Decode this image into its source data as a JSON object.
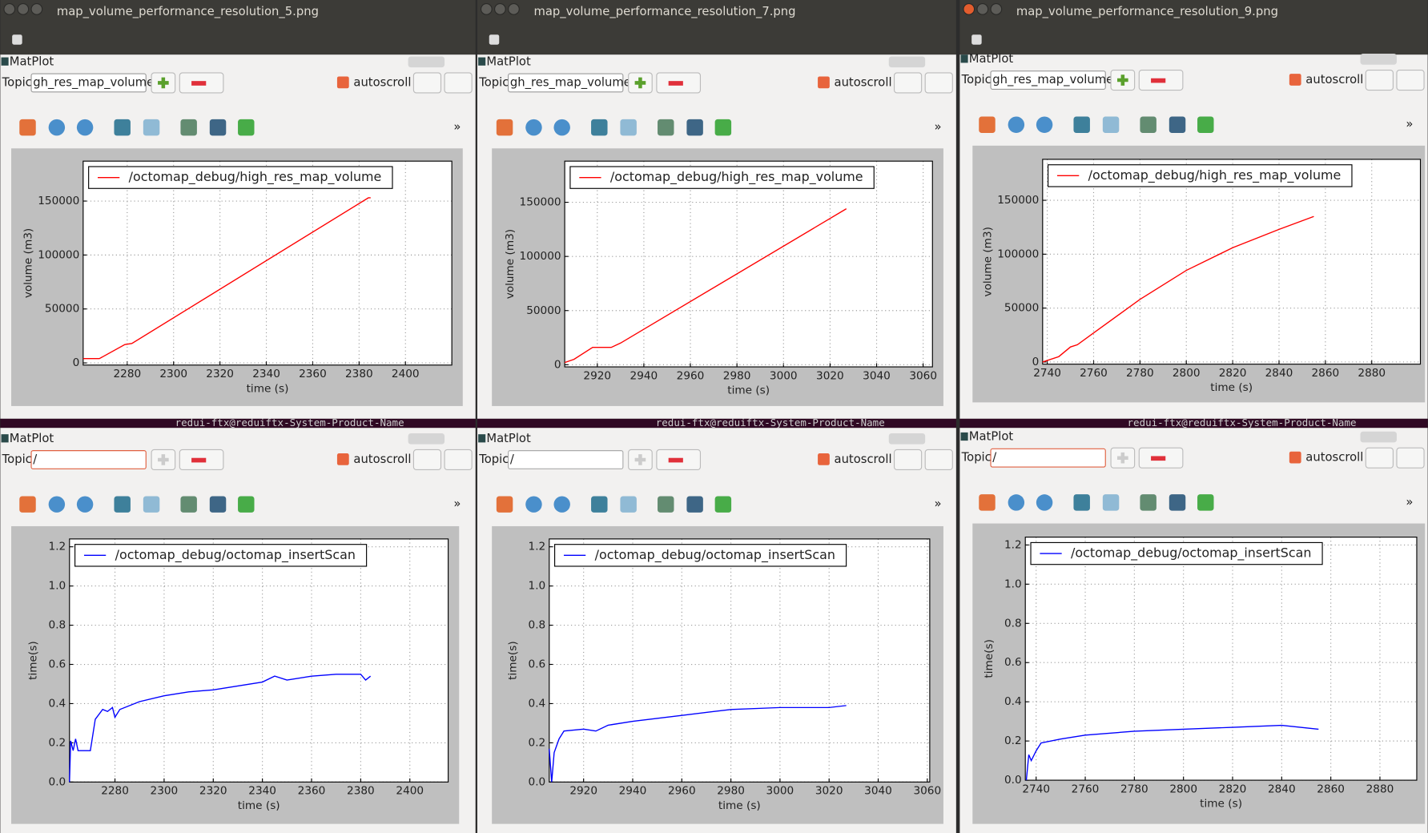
{
  "windows": [
    {
      "title": "map_volume_performance_resolution_5.png",
      "panels": [
        {
          "label": "MatPlot",
          "topic_label": "Topic",
          "topic": "gh_res_map_volume",
          "autoscroll": "autoscroll"
        },
        {
          "label": "MatPlot",
          "topic_label": "Topic",
          "topic": "/",
          "autoscroll": "autoscroll"
        }
      ]
    },
    {
      "title": "map_volume_performance_resolution_7.png",
      "panels": [
        {
          "label": "MatPlot",
          "topic_label": "Topic",
          "topic": "gh_res_map_volume",
          "autoscroll": "autoscroll"
        },
        {
          "label": "MatPlot",
          "topic_label": "Topic",
          "topic": "/",
          "autoscroll": "autoscroll"
        }
      ]
    },
    {
      "title": "map_volume_performance_resolution_9.png",
      "panels": [
        {
          "label": "MatPlot",
          "topic_label": "Topic",
          "topic": "gh_res_map_volume",
          "autoscroll": "autoscroll"
        },
        {
          "label": "MatPlot",
          "topic_label": "Topic",
          "topic": "/",
          "autoscroll": "autoscroll"
        }
      ]
    }
  ],
  "toolbar_overflow": "»",
  "terminal_text": "redui-ftx@reduiftx-System-Product-Name",
  "chart_data": [
    {
      "type": "line",
      "xlabel": "time (s)",
      "ylabel": "volume (m3)",
      "x": [
        2261,
        2268,
        2279,
        2282,
        2384,
        2385
      ],
      "series": [
        {
          "name": "/octomap_debug/high_res_map_volume",
          "color": "#ff0000",
          "values": [
            4000,
            4000,
            17000,
            18000,
            153000,
            153000
          ]
        }
      ],
      "xlim": [
        2261,
        2420
      ],
      "ylim": [
        -2000,
        187000
      ],
      "xticks": [
        2280,
        2300,
        2320,
        2340,
        2360,
        2380,
        2400
      ],
      "yticks": [
        0,
        50000,
        100000,
        150000
      ],
      "grid": true,
      "legend": "upper left"
    },
    {
      "type": "line",
      "xlabel": "time (s)",
      "ylabel": "volume (m3)",
      "x": [
        2906,
        2910,
        2918,
        2926,
        2930,
        3027
      ],
      "series": [
        {
          "name": "/octomap_debug/high_res_map_volume",
          "color": "#ff0000",
          "values": [
            2000,
            5000,
            16000,
            16000,
            20000,
            144000
          ]
        }
      ],
      "xlim": [
        2906,
        3064
      ],
      "ylim": [
        -2000,
        188000
      ],
      "xticks": [
        2920,
        2940,
        2960,
        2980,
        3000,
        3020,
        3040,
        3060
      ],
      "yticks": [
        0,
        50000,
        100000,
        150000
      ],
      "grid": true,
      "legend": "upper left"
    },
    {
      "type": "line",
      "xlabel": "time (s)",
      "ylabel": "volume (m3)",
      "x": [
        2738,
        2745,
        2750,
        2753,
        2760,
        2780,
        2800,
        2820,
        2840,
        2855
      ],
      "series": [
        {
          "name": "/octomap_debug/high_res_map_volume",
          "color": "#ff0000",
          "values": [
            0,
            5000,
            14000,
            16000,
            27000,
            58000,
            85000,
            106000,
            123000,
            135000
          ]
        }
      ],
      "xlim": [
        2738,
        2901
      ],
      "ylim": [
        -2000,
        188000
      ],
      "xticks": [
        2740,
        2760,
        2780,
        2800,
        2820,
        2840,
        2860,
        2880
      ],
      "yticks": [
        0,
        50000,
        100000,
        150000
      ],
      "grid": true,
      "legend": "upper left"
    },
    {
      "type": "line",
      "xlabel": "time (s)",
      "ylabel": "time(s)",
      "x": [
        2261.5,
        2262,
        2263,
        2264,
        2265,
        2270,
        2271,
        2272,
        2275,
        2277,
        2279,
        2280,
        2282,
        2290,
        2300,
        2310,
        2320,
        2330,
        2340,
        2345,
        2350,
        2360,
        2370,
        2380,
        2382,
        2384
      ],
      "series": [
        {
          "name": "/octomap_debug/octomap_insertScan",
          "color": "#0000ff",
          "values": [
            0,
            0.21,
            0.16,
            0.22,
            0.16,
            0.16,
            0.24,
            0.32,
            0.37,
            0.36,
            0.38,
            0.33,
            0.37,
            0.41,
            0.44,
            0.46,
            0.47,
            0.49,
            0.51,
            0.54,
            0.52,
            0.54,
            0.55,
            0.55,
            0.52,
            0.54
          ]
        }
      ],
      "xlim": [
        2261.5,
        2415.6
      ],
      "ylim": [
        0,
        1.24
      ],
      "xticks": [
        2280,
        2300,
        2320,
        2340,
        2360,
        2380,
        2400
      ],
      "yticks": [
        {
          "value": 0,
          "label": "0.0"
        },
        0.2,
        0.4,
        0.6,
        0.8,
        {
          "value": 1,
          "label": "1.0"
        },
        1.2
      ],
      "grid": true,
      "legend": "upper left"
    },
    {
      "type": "line",
      "xlabel": "time (s)",
      "ylabel": "time(s)",
      "x": [
        2906,
        2907,
        2908,
        2910,
        2912,
        2920,
        2925,
        2930,
        2940,
        2960,
        2980,
        3000,
        3020,
        3027
      ],
      "series": [
        {
          "name": "/octomap_debug/octomap_insertScan",
          "color": "#0000ff",
          "values": [
            0.17,
            0,
            0.15,
            0.22,
            0.26,
            0.27,
            0.26,
            0.29,
            0.31,
            0.34,
            0.37,
            0.38,
            0.38,
            0.39
          ]
        }
      ],
      "xlim": [
        2906,
        3061
      ],
      "ylim": [
        0,
        1.24
      ],
      "xticks": [
        2920,
        2940,
        2960,
        2980,
        3000,
        3020,
        3040,
        3060
      ],
      "yticks": [
        {
          "value": 0,
          "label": "0.0"
        },
        0.2,
        0.4,
        0.6,
        0.8,
        {
          "value": 1,
          "label": "1.0"
        },
        1.2
      ],
      "grid": true,
      "legend": "upper left"
    },
    {
      "type": "line",
      "xlabel": "time (s)",
      "ylabel": "time(s)",
      "x": [
        2736,
        2737,
        2738,
        2740,
        2742,
        2750,
        2760,
        2780,
        2800,
        2820,
        2840,
        2855
      ],
      "series": [
        {
          "name": "/octomap_debug/octomap_insertScan",
          "color": "#0000ff",
          "values": [
            0,
            0.13,
            0.1,
            0.15,
            0.19,
            0.21,
            0.23,
            0.25,
            0.26,
            0.27,
            0.28,
            0.26
          ]
        }
      ],
      "xlim": [
        2735.6,
        2895
      ],
      "ylim": [
        0,
        1.24
      ],
      "xticks": [
        2740,
        2760,
        2780,
        2800,
        2820,
        2840,
        2860,
        2880
      ],
      "yticks": [
        {
          "value": 0,
          "label": "0.0"
        },
        0.2,
        0.4,
        0.6,
        0.8,
        {
          "value": 1,
          "label": "1.0"
        },
        1.2
      ],
      "grid": true,
      "legend": "upper left"
    }
  ]
}
